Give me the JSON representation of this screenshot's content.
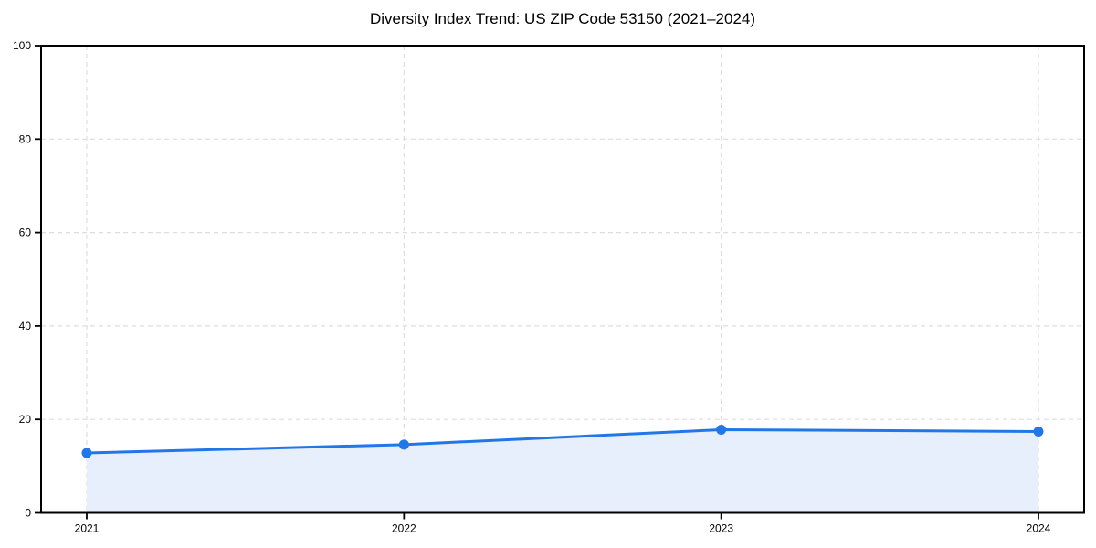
{
  "chart_data": {
    "type": "line",
    "title": "Diversity Index Trend: US ZIP Code 53150 (2021–2024)",
    "categories": [
      "2021",
      "2022",
      "2023",
      "2024"
    ],
    "series": [
      {
        "name": "Diversity Index",
        "values": [
          12.8,
          14.6,
          17.8,
          17.4
        ]
      }
    ],
    "xlabel": "",
    "ylabel": "",
    "ylim": [
      0,
      100
    ],
    "yticks": [
      0,
      20,
      40,
      60,
      80,
      100
    ],
    "grid": true,
    "grid_style": "dashed",
    "legend_position": "none",
    "area_fill": true,
    "marker": "circle",
    "colors": {
      "line": "#2277e8",
      "marker": "#2277e8",
      "area_fill": "#e7effc",
      "grid": "#dedede",
      "axis": "#000000",
      "title": "#000000",
      "tick_labels": "#000000",
      "background": "#ffffff"
    }
  }
}
